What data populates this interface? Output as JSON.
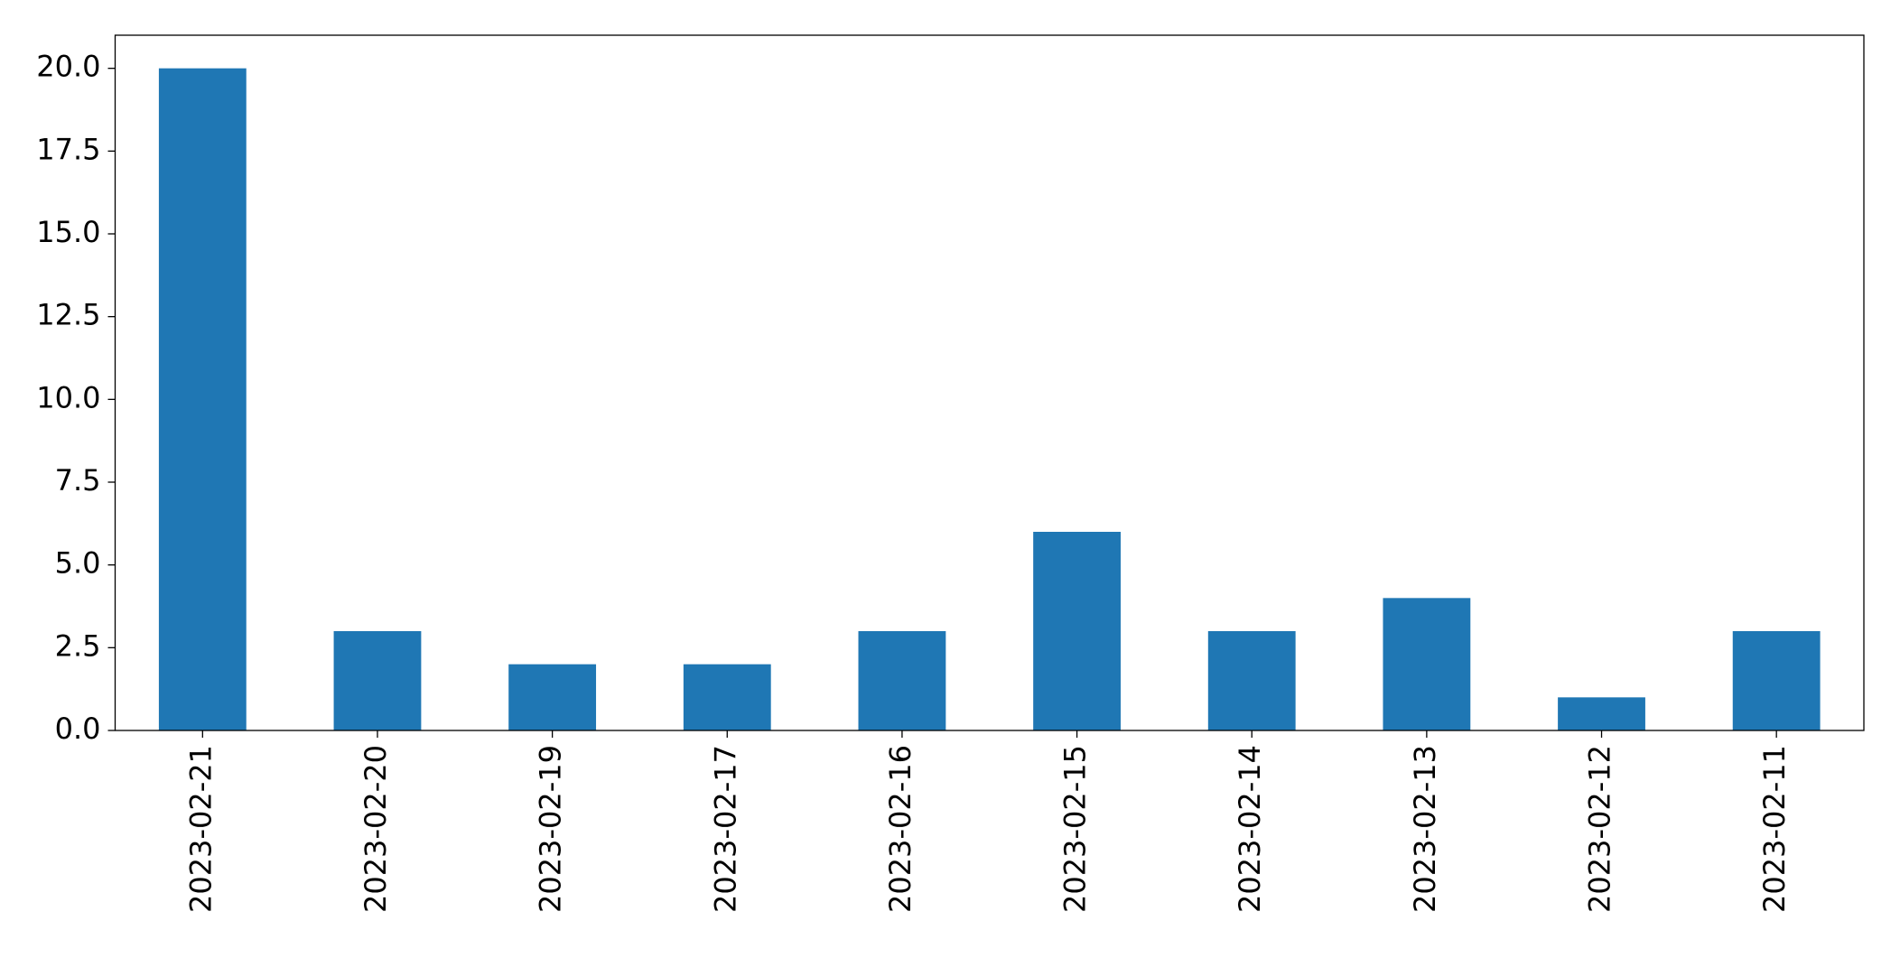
{
  "chart_data": {
    "type": "bar",
    "categories": [
      "2023-02-21",
      "2023-02-20",
      "2023-02-19",
      "2023-02-17",
      "2023-02-16",
      "2023-02-15",
      "2023-02-14",
      "2023-02-13",
      "2023-02-12",
      "2023-02-11"
    ],
    "values": [
      20,
      3,
      2,
      2,
      3,
      6,
      3,
      4,
      1,
      3
    ],
    "color": "#1f77b4",
    "ylim": [
      0,
      21
    ],
    "yticks": [
      {
        "value": 0,
        "label": "0.0"
      },
      2.5,
      {
        "value": 5,
        "label": "5.0"
      },
      7.5,
      {
        "value": 10,
        "label": "10.0"
      },
      12.5,
      {
        "value": 15,
        "label": "15.0"
      },
      17.5,
      {
        "value": 20,
        "label": "20.0"
      }
    ],
    "grid": false
  }
}
